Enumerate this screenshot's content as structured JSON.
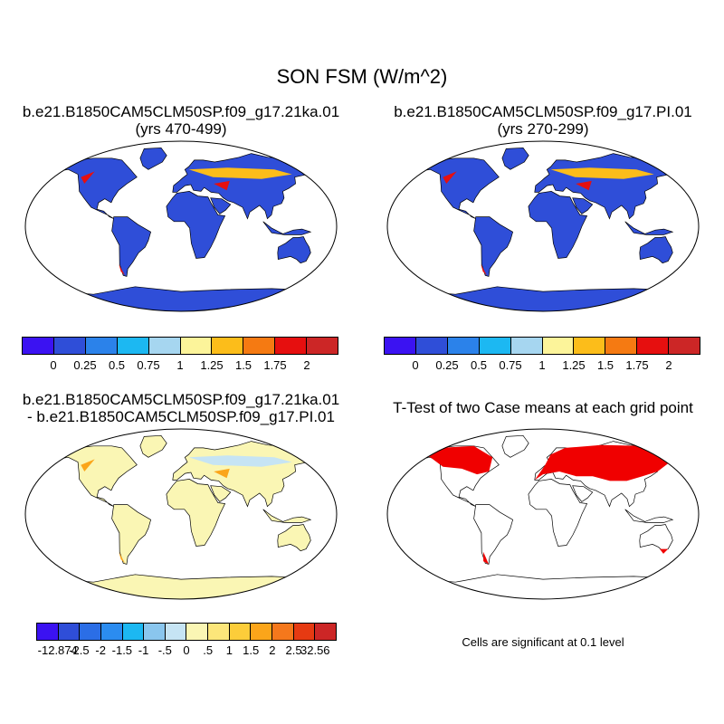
{
  "title": "SON FSM (W/m^2)",
  "panels": [
    {
      "id": "p1",
      "title_line1": "b.e21.B1850CAM5CLM50SP.f09_g17.21ka.01",
      "title_line2": "(yrs 470-499)"
    },
    {
      "id": "p2",
      "title_line1": "b.e21.B1850CAM5CLM50SP.f09_g17.PI.01",
      "title_line2": "(yrs 270-299)"
    },
    {
      "id": "p3",
      "title_line1": "b.e21.B1850CAM5CLM50SP.f09_g17.21ka.01",
      "title_line2": "- b.e21.B1850CAM5CLM50SP.f09_g17.PI.01"
    },
    {
      "id": "p4",
      "title_line1": "T-Test of two Case means at each grid point"
    }
  ],
  "significance_note": "Cells are significant at 0.1 level",
  "colorbar_top": {
    "colors": [
      "#3b12f2",
      "#2f4ed8",
      "#2b82ea",
      "#1cb8f2",
      "#a6d6f0",
      "#fcf49a",
      "#fcbd1a",
      "#f57a12",
      "#e60f0f",
      "#cc2626"
    ],
    "labels": [
      "0",
      "0.25",
      "0.5",
      "0.75",
      "1",
      "1.25",
      "1.5",
      "1.75",
      "2"
    ]
  },
  "colorbar_diff": {
    "colors": [
      "#3b12f2",
      "#2f4ed8",
      "#2b6ee6",
      "#2b8cf0",
      "#1cb8f2",
      "#8ac6ee",
      "#c6e4f4",
      "#faf6b4",
      "#fce67a",
      "#fccd3a",
      "#fba51a",
      "#f5781c",
      "#e63a12",
      "#cc2626"
    ],
    "labels": [
      "-12.874",
      "-2.5",
      "-2",
      "-1.5",
      "-1",
      "-.5",
      "0",
      ".5",
      "1",
      "1.5",
      "2",
      "2.5",
      "32.56"
    ]
  },
  "map_colors": {
    "ocean": "#ffffff",
    "land_p1": "#2f4ed8",
    "land_p2": "#2f4ed8",
    "land_p3": "#faf6b4",
    "land_p4": "#ffffff",
    "significant": "#f00000"
  }
}
